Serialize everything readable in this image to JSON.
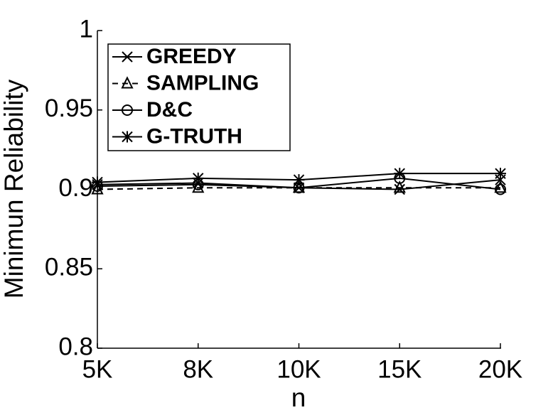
{
  "chart_data": {
    "type": "line",
    "x_label": "n",
    "y_label": "Minimun Reliability",
    "categories": [
      "5K",
      "8K",
      "10K",
      "15K",
      "20K"
    ],
    "ylim": [
      0.8,
      1
    ],
    "yticks": [
      0.8,
      0.85,
      0.9,
      0.95,
      1
    ],
    "grid": false,
    "legend_position": "upper left",
    "series": [
      {
        "name": "GREEDY",
        "color": "#000000",
        "marker": "x",
        "linestyle": "solid",
        "values": [
          0.903,
          0.904,
          0.901,
          0.9,
          0.906
        ]
      },
      {
        "name": "SAMPLING",
        "color": "#000000",
        "marker": "triangle",
        "linestyle": "dashed",
        "values": [
          0.9,
          0.901,
          0.901,
          0.901,
          0.901
        ]
      },
      {
        "name": "D&C",
        "color": "#000000",
        "marker": "circle",
        "linestyle": "solid",
        "values": [
          0.902,
          0.903,
          0.901,
          0.907,
          0.9
        ]
      },
      {
        "name": "G-TRUTH",
        "color": "#000000",
        "marker": "star",
        "linestyle": "solid",
        "values": [
          0.9045,
          0.907,
          0.906,
          0.91,
          0.91
        ]
      }
    ]
  }
}
